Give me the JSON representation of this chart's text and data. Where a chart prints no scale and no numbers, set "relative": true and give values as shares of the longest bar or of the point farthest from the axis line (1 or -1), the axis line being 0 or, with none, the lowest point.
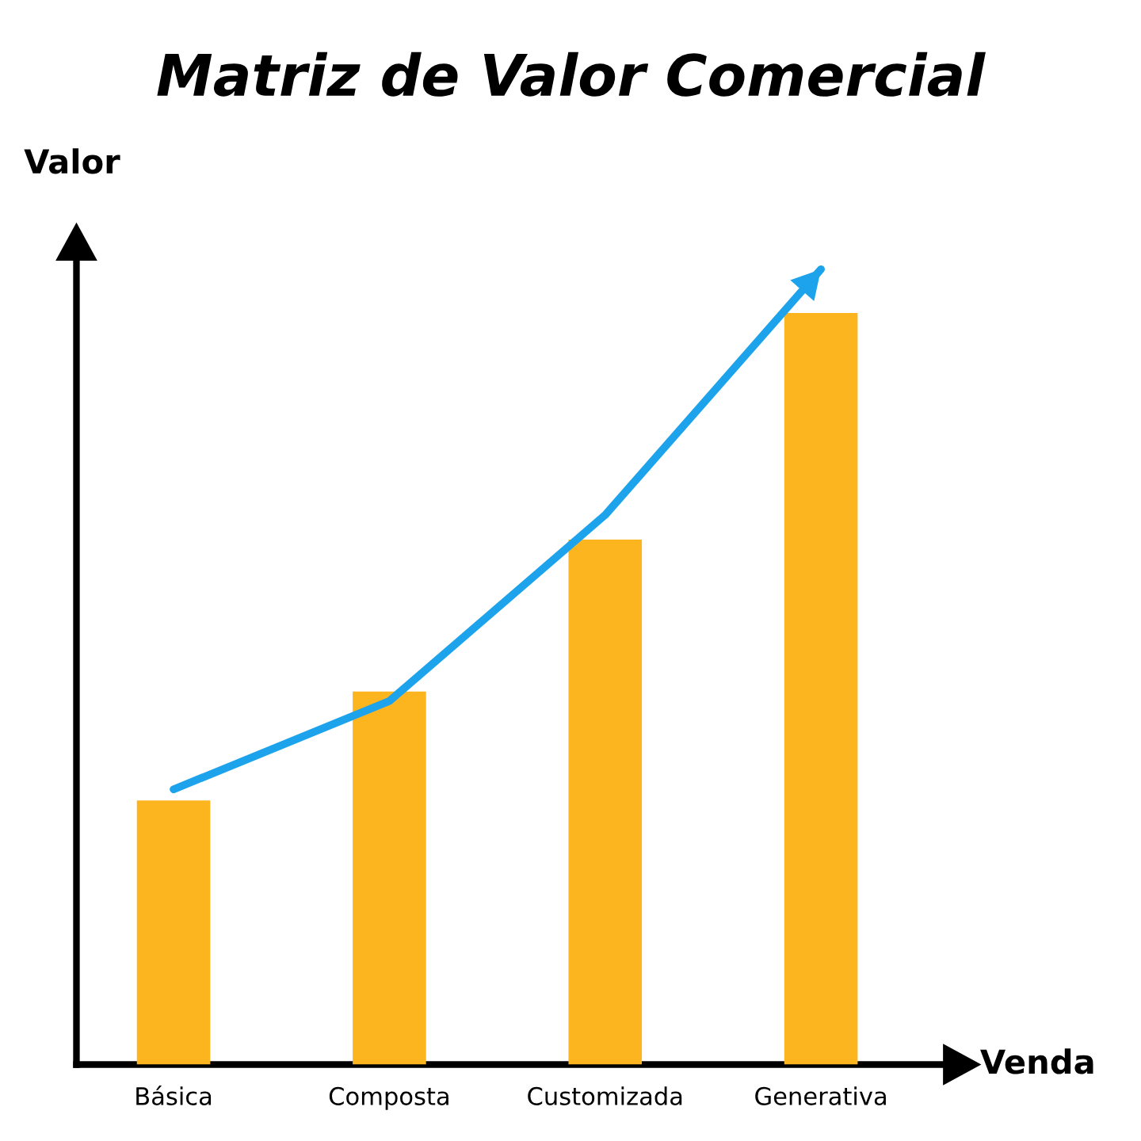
{
  "chart_data": {
    "type": "bar",
    "title": "Matriz de Valor Comercial",
    "xlabel": "Venda",
    "ylabel": "Valor",
    "categories": [
      "Básica",
      "Composta",
      "Customizada",
      "Generativa"
    ],
    "series": [
      {
        "color": "#fdb51f",
        "values": [
          0.332,
          0.469,
          0.66,
          0.945
        ]
      },
      {
        "type": "line",
        "color": "#1ca3ec",
        "values": [
          0.346,
          0.457,
          0.691,
          1.0
        ]
      }
    ],
    "marker": "none",
    "line_style": "solid",
    "relative": true,
    "grid": false
  }
}
